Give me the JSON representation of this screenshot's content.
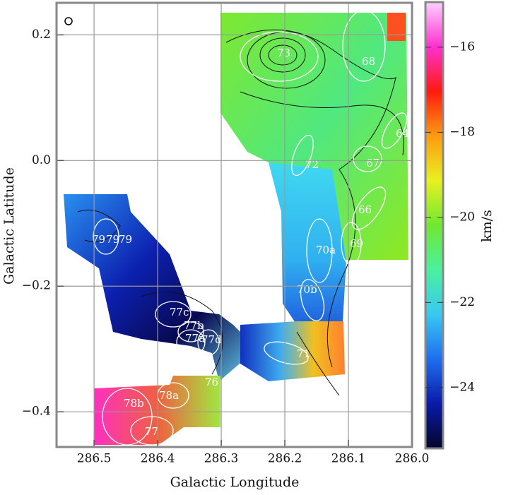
{
  "chart_data": {
    "type": "map",
    "x_label": "Galactic Longitude",
    "y_label": "Galactic Latitude",
    "colorbar_label": "km/s",
    "xlim": [
      286.559,
      286.0
    ],
    "xticks": [
      286.5,
      286.4,
      286.3,
      286.2,
      286.1,
      {
        "value": 286,
        "label": "286.0"
      }
    ],
    "ylim": [
      -0.456,
      0.251
    ],
    "yticks": [
      {
        "value": -0.4,
        "label": "−0.4"
      },
      {
        "value": -0.2,
        "label": "−0.2"
      },
      {
        "value": 0,
        "label": "0.0"
      },
      0.2
    ],
    "clim": [
      -25.43,
      -14.94
    ],
    "cticks": [
      {
        "value": -24,
        "label": "−24"
      },
      {
        "value": -22,
        "label": "−22"
      },
      {
        "value": -20,
        "label": "−20"
      },
      {
        "value": -18,
        "label": "−18"
      },
      {
        "value": -16,
        "label": "−16"
      }
    ],
    "colormap": [
      "#05052a",
      "#0a1aa8",
      "#1e6ef0",
      "#38c8f0",
      "#4cf0a0",
      "#70e830",
      "#e8f020",
      "#ff9a10",
      "#ff1a10",
      "#ff30d0",
      "#ffd0ff"
    ],
    "grid": true,
    "regions": [
      "73",
      "68",
      "64",
      "72",
      "67",
      "66",
      "69",
      "70a",
      "70b",
      "71",
      "77c",
      "77b",
      "77a",
      "77d",
      "76",
      "78a",
      "78b",
      "79",
      "79",
      "79",
      "77"
    ]
  }
}
